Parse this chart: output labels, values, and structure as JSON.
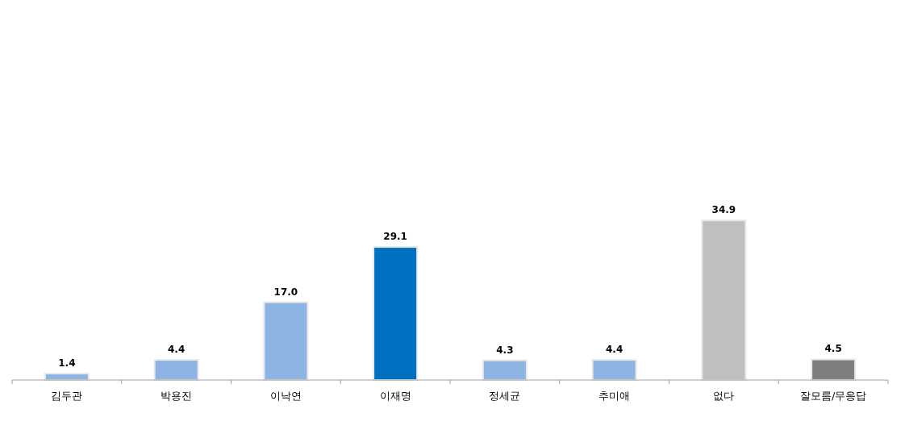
{
  "chart_data": {
    "type": "bar",
    "categories": [
      "김두관",
      "박용진",
      "이낙연",
      "이재명",
      "정세균",
      "추미애",
      "없다",
      "잘모름/무응답"
    ],
    "values": [
      1.4,
      4.4,
      17.0,
      29.1,
      4.3,
      4.4,
      34.9,
      4.5
    ],
    "value_labels": [
      "1.4",
      "4.4",
      "17.0",
      "29.1",
      "4.3",
      "4.4",
      "34.9",
      "4.5"
    ],
    "colors": [
      "#8eb4e3",
      "#8eb4e3",
      "#8eb4e3",
      "#0070c0",
      "#8eb4e3",
      "#8eb4e3",
      "#bfbfbf",
      "#7f7f7f"
    ],
    "grid": false
  }
}
